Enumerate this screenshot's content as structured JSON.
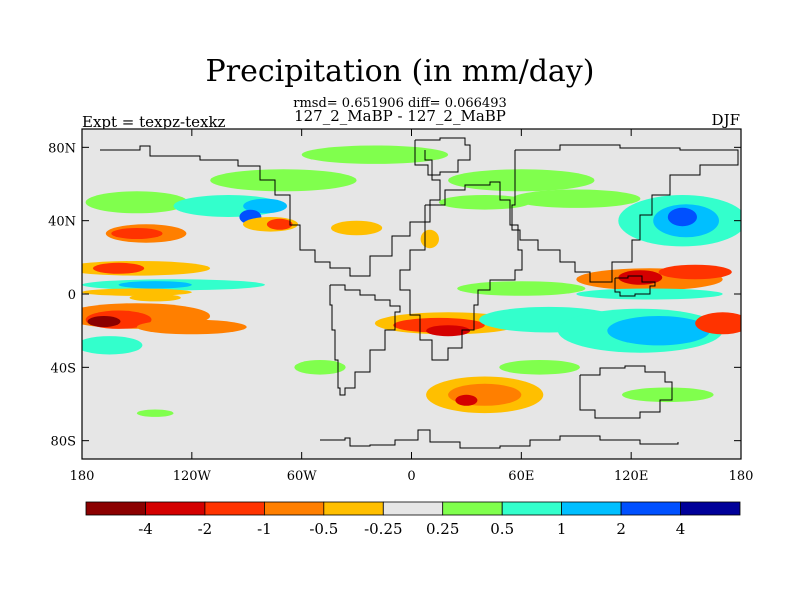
{
  "page": {
    "title": "Precipitation (in mm/day)",
    "stats": "rmsd= 0.651906 diff= 0.066493",
    "subtitle": "127_2_MaBP - 127_2_MaBP",
    "left_label": "Expt = texpz-texkz",
    "right_label": "DJF"
  },
  "chart_data": {
    "type": "heatmap",
    "title": "Precipitation (in mm/day)",
    "units": "mm/day",
    "season": "DJF",
    "x_ticks": [
      {
        "value": -180,
        "label": "180"
      },
      {
        "value": -120,
        "label": "120W"
      },
      {
        "value": -60,
        "label": "60W"
      },
      {
        "value": 0,
        "label": "0"
      },
      {
        "value": 60,
        "label": "60E"
      },
      {
        "value": 120,
        "label": "120E"
      },
      {
        "value": 180,
        "label": "180"
      }
    ],
    "y_ticks": [
      {
        "value": 80,
        "label": "80N"
      },
      {
        "value": 40,
        "label": "40N"
      },
      {
        "value": 0,
        "label": "0"
      },
      {
        "value": -40,
        "label": "40S"
      },
      {
        "value": -80,
        "label": "80S"
      }
    ],
    "xlim": [
      -180,
      180
    ],
    "ylim": [
      -90,
      90
    ],
    "colorbar": {
      "colors": [
        "#8b0000",
        "#d40000",
        "#ff3300",
        "#ff7f00",
        "#ffbf00",
        "#e6e6e6",
        "#80ff4d",
        "#33ffcc",
        "#00bfff",
        "#0050ff",
        "#000099"
      ],
      "labels": [
        "-4",
        "-2",
        "-1",
        "-0.5",
        "-0.25",
        "0.25",
        "0.5",
        "1",
        "2",
        "4"
      ],
      "levels": [
        -4,
        -2,
        -1,
        -0.5,
        -0.25,
        0.25,
        0.5,
        1,
        2,
        4
      ]
    },
    "background_color": "#e6e6e6",
    "features": [
      {
        "lon": -150,
        "lat": 50,
        "rx": 28,
        "ry": 6,
        "v": 0.4
      },
      {
        "lon": -100,
        "lat": 48,
        "rx": 30,
        "ry": 6,
        "v": 0.9
      },
      {
        "lon": -80,
        "lat": 48,
        "rx": 12,
        "ry": 4,
        "v": 1.6
      },
      {
        "lon": -88,
        "lat": 42,
        "rx": 6,
        "ry": 4,
        "v": 2.5
      },
      {
        "lon": -70,
        "lat": 62,
        "rx": 40,
        "ry": 6,
        "v": 0.45
      },
      {
        "lon": -20,
        "lat": 76,
        "rx": 40,
        "ry": 5,
        "v": 0.4
      },
      {
        "lon": 60,
        "lat": 62,
        "rx": 40,
        "ry": 6,
        "v": 0.4
      },
      {
        "lon": 40,
        "lat": 50,
        "rx": 25,
        "ry": 4,
        "v": 0.35
      },
      {
        "lon": -145,
        "lat": 33,
        "rx": 22,
        "ry": 5,
        "v": -0.6
      },
      {
        "lon": -150,
        "lat": 33,
        "rx": 14,
        "ry": 3,
        "v": -1.4
      },
      {
        "lon": -77,
        "lat": 38,
        "rx": 15,
        "ry": 4,
        "v": -0.5
      },
      {
        "lon": -72,
        "lat": 38,
        "rx": 7,
        "ry": 3,
        "v": -1.5
      },
      {
        "lon": -30,
        "lat": 36,
        "rx": 14,
        "ry": 4,
        "v": -0.35
      },
      {
        "lon": 10,
        "lat": 30,
        "rx": 5,
        "ry": 5,
        "v": -0.3
      },
      {
        "lon": 90,
        "lat": 52,
        "rx": 35,
        "ry": 5,
        "v": 0.4
      },
      {
        "lon": 148,
        "lat": 40,
        "rx": 35,
        "ry": 14,
        "v": 0.7
      },
      {
        "lon": 150,
        "lat": 40,
        "rx": 18,
        "ry": 9,
        "v": 1.6
      },
      {
        "lon": 148,
        "lat": 42,
        "rx": 8,
        "ry": 5,
        "v": 2.6
      },
      {
        "lon": -150,
        "lat": 14,
        "rx": 40,
        "ry": 4,
        "v": -0.45
      },
      {
        "lon": -160,
        "lat": 14,
        "rx": 14,
        "ry": 3,
        "v": -1.2
      },
      {
        "lon": -130,
        "lat": 5,
        "rx": 50,
        "ry": 3,
        "v": 0.5
      },
      {
        "lon": -140,
        "lat": 5,
        "rx": 20,
        "ry": 2,
        "v": 1.2
      },
      {
        "lon": -150,
        "lat": 1,
        "rx": 30,
        "ry": 2,
        "v": -0.3
      },
      {
        "lon": 130,
        "lat": 8,
        "rx": 40,
        "ry": 6,
        "v": -0.9
      },
      {
        "lon": 125,
        "lat": 9,
        "rx": 12,
        "ry": 4,
        "v": -2.4
      },
      {
        "lon": 155,
        "lat": 12,
        "rx": 20,
        "ry": 4,
        "v": -1.6
      },
      {
        "lon": 130,
        "lat": 0,
        "rx": 40,
        "ry": 3,
        "v": 0.6
      },
      {
        "lon": 60,
        "lat": 3,
        "rx": 35,
        "ry": 4,
        "v": 0.4
      },
      {
        "lon": -150,
        "lat": -12,
        "rx": 40,
        "ry": 7,
        "v": -0.6
      },
      {
        "lon": -160,
        "lat": -14,
        "rx": 18,
        "ry": 5,
        "v": -2.0
      },
      {
        "lon": -168,
        "lat": -15,
        "rx": 9,
        "ry": 3,
        "v": -4.5
      },
      {
        "lon": -120,
        "lat": -18,
        "rx": 30,
        "ry": 4,
        "v": -0.7
      },
      {
        "lon": -165,
        "lat": -28,
        "rx": 18,
        "ry": 5,
        "v": 0.8
      },
      {
        "lon": 20,
        "lat": -16,
        "rx": 40,
        "ry": 6,
        "v": -0.5
      },
      {
        "lon": 15,
        "lat": -17,
        "rx": 25,
        "ry": 4,
        "v": -1.1
      },
      {
        "lon": 20,
        "lat": -20,
        "rx": 12,
        "ry": 3,
        "v": -2.3
      },
      {
        "lon": 75,
        "lat": -14,
        "rx": 38,
        "ry": 7,
        "v": 0.55
      },
      {
        "lon": 125,
        "lat": -20,
        "rx": 45,
        "ry": 12,
        "v": 0.8
      },
      {
        "lon": 135,
        "lat": -20,
        "rx": 28,
        "ry": 8,
        "v": 1.6
      },
      {
        "lon": 170,
        "lat": -16,
        "rx": 15,
        "ry": 6,
        "v": -1.8
      },
      {
        "lon": 40,
        "lat": -55,
        "rx": 32,
        "ry": 10,
        "v": -0.4
      },
      {
        "lon": 40,
        "lat": -55,
        "rx": 20,
        "ry": 6,
        "v": -1.0
      },
      {
        "lon": 30,
        "lat": -58,
        "rx": 6,
        "ry": 3,
        "v": -2.2
      },
      {
        "lon": -50,
        "lat": -40,
        "rx": 14,
        "ry": 4,
        "v": 0.35
      },
      {
        "lon": 70,
        "lat": -40,
        "rx": 22,
        "ry": 4,
        "v": 0.35
      },
      {
        "lon": 140,
        "lat": -55,
        "rx": 25,
        "ry": 4,
        "v": 0.35
      },
      {
        "lon": -140,
        "lat": -65,
        "rx": 10,
        "ry": 2,
        "v": 0.3
      },
      {
        "lon": -140,
        "lat": -2,
        "rx": 14,
        "ry": 2,
        "v": -0.35
      }
    ]
  }
}
